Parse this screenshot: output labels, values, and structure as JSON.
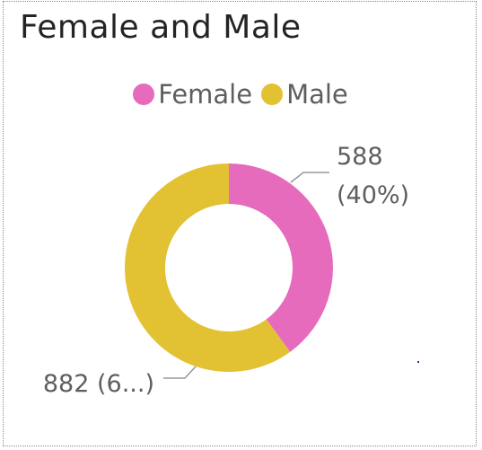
{
  "chart_data": {
    "type": "pie",
    "title": "Female and Male",
    "categories": [
      "Female",
      "Male"
    ],
    "values": [
      588,
      882
    ],
    "colors": [
      "#E66BBC",
      "#E2C233"
    ],
    "donut": true,
    "legend": "top-center",
    "data_labels": {
      "female_line1": "588",
      "female_line2": "(40%)",
      "male": "882 (6...)"
    }
  }
}
